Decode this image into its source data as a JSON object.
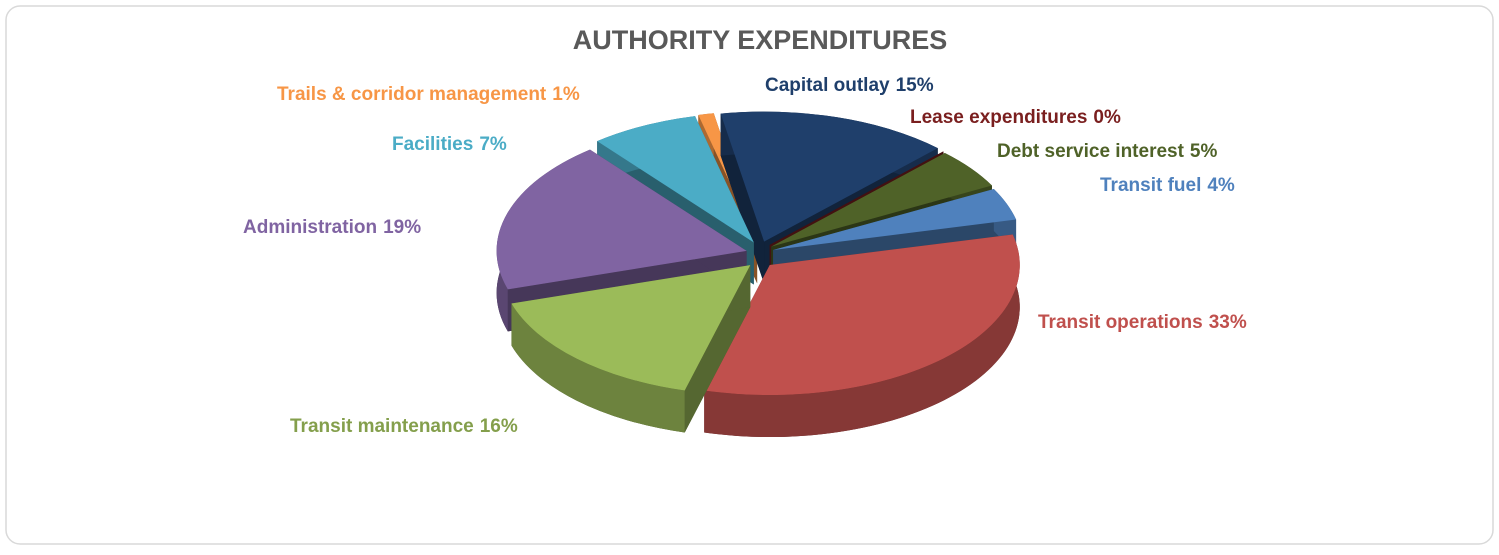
{
  "chart_data": {
    "type": "pie3d",
    "title": "AUTHORITY EXPENDITURES",
    "categories": [
      "Capital outlay",
      "Lease expenditures",
      "Debt service interest",
      "Transit fuel",
      "Transit operations",
      "Transit maintenance",
      "Administration",
      "Facilities",
      "Trails & corridor management"
    ],
    "values": [
      15,
      0,
      5,
      4,
      33,
      16,
      19,
      7,
      1
    ],
    "value_labels": [
      "15%",
      "0%",
      "5%",
      "4%",
      "33%",
      "16%",
      "19%",
      "7%",
      "1%"
    ],
    "colors": [
      "#1f3f6b",
      "#7a1f1f",
      "#4f6228",
      "#4f81bd",
      "#c0504d",
      "#9bbb59",
      "#8064a2",
      "#4bacc6",
      "#f79646"
    ]
  }
}
